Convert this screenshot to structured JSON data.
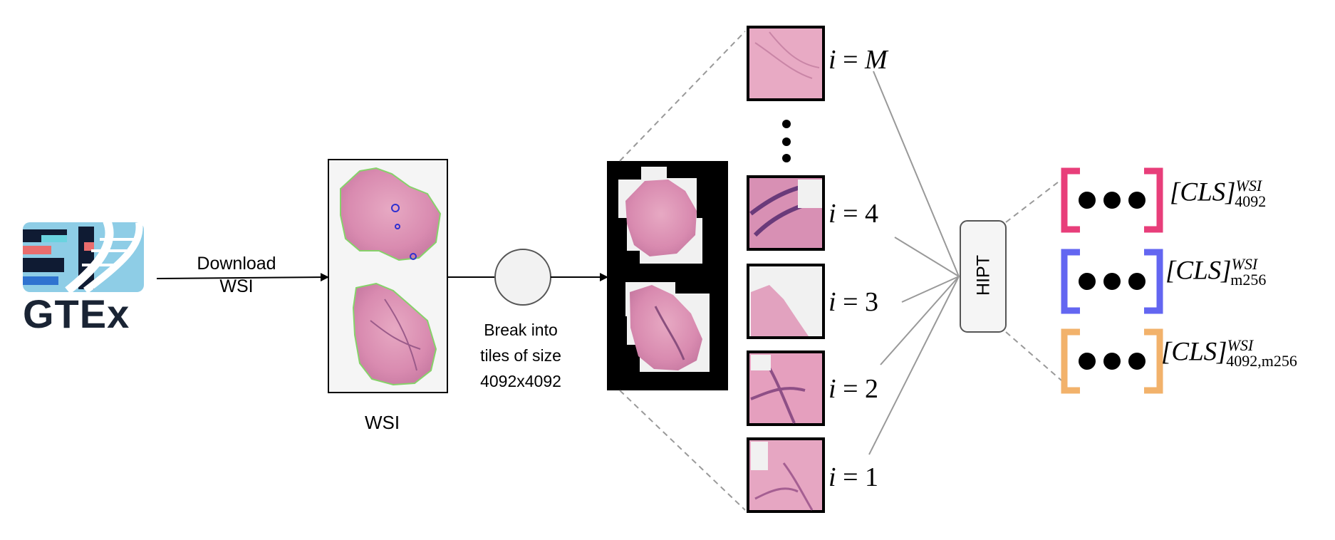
{
  "logo": {
    "text": "GTEx"
  },
  "labels": {
    "download": "Download WSI",
    "download_line1": "Download",
    "download_line2": "WSI",
    "wsi": "WSI",
    "break_line1": "Break into",
    "break_line2": "tiles of size",
    "break_line3": "4092x4092",
    "hipt": "HIPT"
  },
  "tiles": [
    {
      "index_var": "i",
      "eq": "=",
      "value": "M"
    },
    {
      "index_var": "i",
      "eq": "=",
      "value": "4"
    },
    {
      "index_var": "i",
      "eq": "=",
      "value": "3"
    },
    {
      "index_var": "i",
      "eq": "=",
      "value": "2"
    },
    {
      "index_var": "i",
      "eq": "=",
      "value": "1"
    }
  ],
  "outputs": [
    {
      "base": "[CLS]",
      "sup": "WSI",
      "sub": "4092",
      "color": "#e83e7a"
    },
    {
      "base": "[CLS]",
      "sup": "WSI",
      "sub": "m256",
      "color": "#6366f1"
    },
    {
      "base": "[CLS]",
      "sup": "WSI",
      "sub": "4092,m256",
      "color": "#f2b26b"
    }
  ]
}
